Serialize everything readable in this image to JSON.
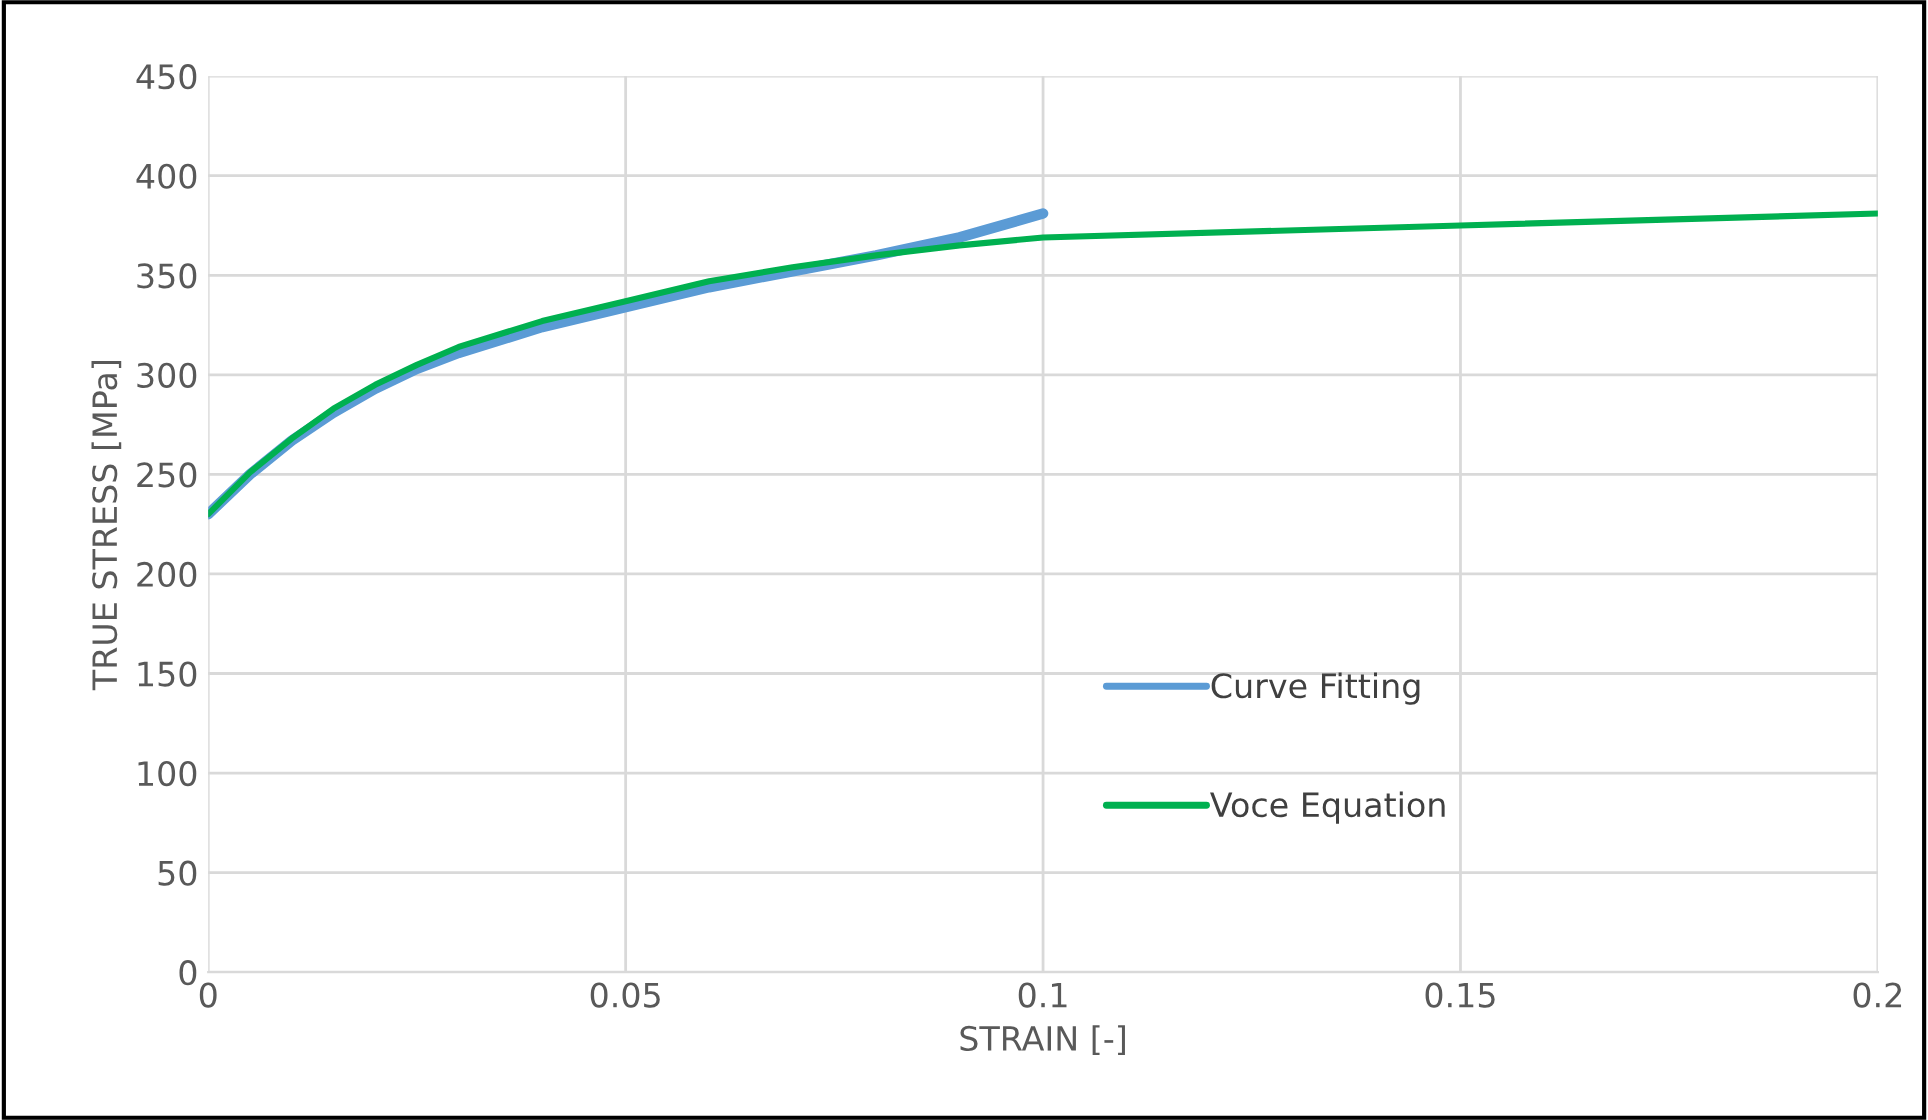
{
  "chart_data": {
    "type": "line",
    "xlabel": "STRAIN [-]",
    "ylabel": "TRUE STRESS [MPa]",
    "xlim": [
      0,
      0.2
    ],
    "xticks": [
      0,
      0.05,
      0.1,
      0.15,
      0.2
    ],
    "ylim": [
      0,
      450
    ],
    "yticks": [
      0,
      50,
      100,
      150,
      200,
      250,
      300,
      350,
      400,
      450
    ],
    "grid": true,
    "legend": "center",
    "marker": "none",
    "line_style": "solid",
    "series": [
      {
        "name": "Curve Fitting",
        "color": "#5b9bd5",
        "x": [
          0,
          0.005,
          0.01,
          0.015,
          0.02,
          0.025,
          0.03,
          0.04,
          0.05,
          0.06,
          0.07,
          0.08,
          0.09,
          0.1
        ],
        "values": [
          230,
          250,
          267,
          281,
          293,
          303,
          311,
          324,
          334,
          344,
          352,
          360,
          369,
          381
        ]
      },
      {
        "name": "Voce Equation",
        "color": "#00b050",
        "x": [
          0,
          0.005,
          0.01,
          0.015,
          0.02,
          0.025,
          0.03,
          0.04,
          0.05,
          0.06,
          0.07,
          0.08,
          0.09,
          0.1,
          0.15,
          0.2
        ],
        "values": [
          230,
          251,
          268,
          283,
          295,
          305,
          314,
          327,
          337,
          347,
          354,
          360,
          365,
          369,
          375,
          381
        ]
      }
    ]
  }
}
